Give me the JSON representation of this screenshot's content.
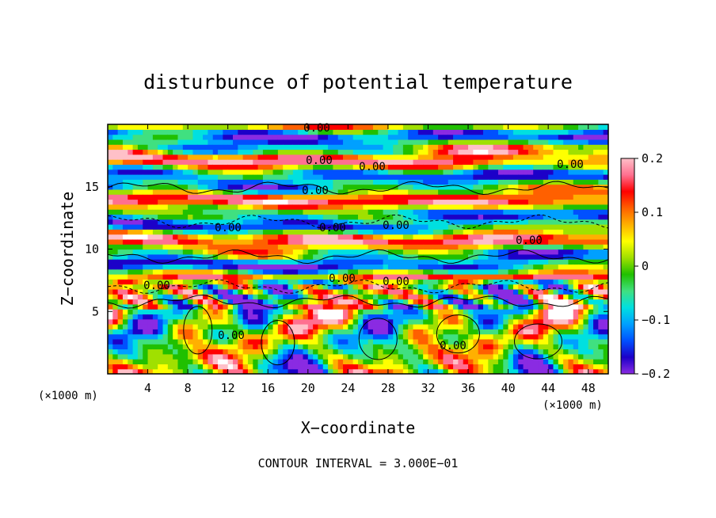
{
  "chart_data": {
    "type": "heatmap",
    "title": "disturbunce of potential temperature",
    "xlabel": "X−coordinate",
    "ylabel": "Z−coordinate",
    "x_unit_left": "(×1000 m)",
    "x_unit_right": "(×1000 m)",
    "xlim": [
      0,
      50
    ],
    "ylim": [
      0,
      20
    ],
    "x_ticks": [
      "4",
      "8",
      "12",
      "16",
      "20",
      "24",
      "28",
      "32",
      "36",
      "40",
      "44",
      "48"
    ],
    "y_ticks": [
      "5",
      "10",
      "15"
    ],
    "colorbar": {
      "range": [
        -0.2,
        0.2
      ],
      "tick_labels": [
        "0.2",
        "0.1",
        "0",
        "−0.1",
        "−0.2"
      ],
      "colors": [
        "#8a2be2",
        "#1c00c8",
        "#0050ff",
        "#00a0ff",
        "#00e0e0",
        "#40e080",
        "#20c000",
        "#a0e000",
        "#ffff00",
        "#ffb000",
        "#ff6000",
        "#ff0000",
        "#ff7090",
        "#ffc0c8"
      ]
    },
    "contour_label": "0.00",
    "contour_interval_note": "CONTOUR INTERVAL = 3.000E−01"
  }
}
